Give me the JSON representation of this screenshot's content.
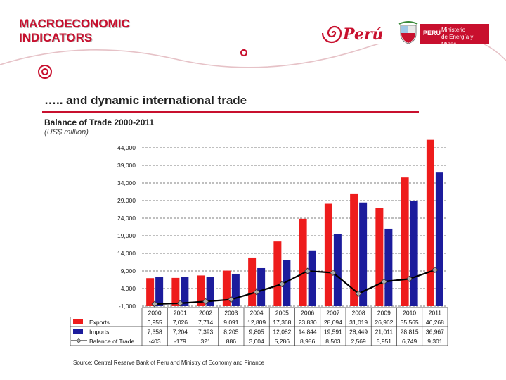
{
  "slide": {
    "title_line1": "MACROECONOMIC",
    "title_line2": "INDICATORS",
    "subtitle": "….. and dynamic international trade",
    "brand": "Perú",
    "ministry_country": "PERÚ",
    "ministry_name_line1": "Ministerio",
    "ministry_name_line2": "de Energía y Minas",
    "source": "Source: Central Reserve Bank of Peru and Ministry of Economy and Finance"
  },
  "colors": {
    "brand_red": "#c8102e",
    "exports": "#ee1c1c",
    "imports": "#1c1c9c",
    "balance_line": "#000000",
    "balance_marker": "#b0b0b0"
  },
  "chart_data": {
    "type": "bar",
    "title": "Balance of Trade 2000-2011",
    "subtitle": "(US$ million)",
    "categories": [
      "2000",
      "2001",
      "2002",
      "2003",
      "2004",
      "2005",
      "2006",
      "2007",
      "2008",
      "2009",
      "2010",
      "2011"
    ],
    "ylim": [
      -1000,
      44000
    ],
    "yticks": [
      44000,
      39000,
      34000,
      29000,
      24000,
      19000,
      14000,
      9000,
      4000,
      -1000
    ],
    "ytick_labels": [
      "44,000",
      "39,000",
      "34,000",
      "29,000",
      "24,000",
      "19,000",
      "14,000",
      "9,000",
      "4,000",
      "-1,000"
    ],
    "grid": true,
    "legend": "table-left",
    "series": [
      {
        "name": "Exports",
        "type": "bar",
        "color": "#ee1c1c",
        "values": [
          6955,
          7026,
          7714,
          9091,
          12809,
          17368,
          23830,
          28094,
          31019,
          26962,
          35565,
          46268
        ],
        "labels": [
          "6,955",
          "7,026",
          "7,714",
          "9,091",
          "12,809",
          "17,368",
          "23,830",
          "28,094",
          "31,019",
          "26,962",
          "35,565",
          "46,268"
        ]
      },
      {
        "name": "Imports",
        "type": "bar",
        "color": "#1c1c9c",
        "values": [
          7358,
          7204,
          7393,
          8205,
          9805,
          12082,
          14844,
          19591,
          28449,
          21011,
          28815,
          36967
        ],
        "labels": [
          "7,358",
          "7,204",
          "7,393",
          "8,205",
          "9,805",
          "12,082",
          "14,844",
          "19,591",
          "28,449",
          "21,011",
          "28,815",
          "36,967"
        ]
      },
      {
        "name": "Balance of Trade",
        "type": "line",
        "color": "#000000",
        "values": [
          -403,
          -179,
          321,
          886,
          3004,
          5286,
          8986,
          8503,
          2569,
          5951,
          6749,
          9301
        ],
        "labels": [
          "-403",
          "-179",
          "321",
          "886",
          "3,004",
          "5,286",
          "8,986",
          "8,503",
          "2,569",
          "5,951",
          "6,749",
          "9,301"
        ]
      }
    ]
  }
}
